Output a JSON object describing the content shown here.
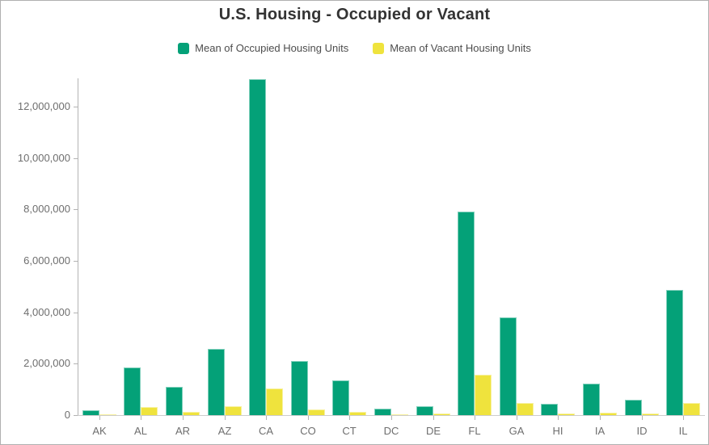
{
  "title": "U.S. Housing - Occupied or Vacant",
  "chart_data": {
    "type": "bar",
    "title": "U.S. Housing - Occupied or Vacant",
    "categories": [
      "AK",
      "AL",
      "AR",
      "AZ",
      "CA",
      "CO",
      "CT",
      "DC",
      "DE",
      "FL",
      "GA",
      "HI",
      "IA",
      "ID",
      "IL"
    ],
    "series": [
      {
        "name": "Mean of Occupied Housing Units",
        "color": "#04a178",
        "values": [
          190000,
          1840000,
          1100000,
          2580000,
          13080000,
          2100000,
          1360000,
          250000,
          330000,
          7930000,
          3800000,
          440000,
          1240000,
          610000,
          4870000
        ]
      },
      {
        "name": "Mean of Vacant Housing Units",
        "color": "#efe33d",
        "values": [
          40000,
          320000,
          140000,
          340000,
          1050000,
          210000,
          110000,
          30000,
          55000,
          1570000,
          470000,
          55000,
          105000,
          55000,
          470000
        ]
      }
    ],
    "xlabel": "",
    "ylabel": "",
    "ylim": [
      0,
      13100000
    ],
    "yticks": [
      0,
      2000000,
      4000000,
      6000000,
      8000000,
      10000000,
      12000000
    ],
    "grid": false,
    "legend_position": "top"
  },
  "colors": {
    "occupied": "#04a178",
    "vacant": "#efe33d",
    "title_text": "#333333",
    "legend_text": "#4d4d4d",
    "axis_text": "#6e6e6e",
    "axis_line": "#b3b3b3",
    "baseline": "#cccccc",
    "panel_border": "#b0b0b0"
  }
}
